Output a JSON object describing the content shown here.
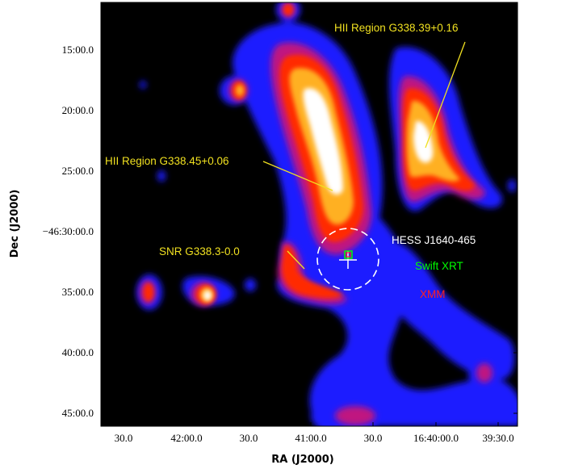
{
  "x_axis": {
    "title": "RA (J2000)",
    "ticks": [
      "30.0",
      "42:00.0",
      "30.0",
      "41:00.0",
      "30.0",
      "16:40:00.0",
      "39:30.0"
    ]
  },
  "y_axis": {
    "title": "Dec (J2000)",
    "ticks": [
      "15:00.0",
      "20:00.0",
      "25:00.0",
      "−46:30:00.0",
      "35:00.0",
      "40:00.0",
      "45:00.0"
    ]
  },
  "annotations": {
    "hii_1": "HII Region G338.39+0.16",
    "hii_2": "HII Region G338.45+0.06",
    "snr": "SNR G338.3-0.0"
  },
  "legend": {
    "hess": "HESS J1640-465",
    "swift": "Swift XRT",
    "xmm": "XMM"
  },
  "colors": {
    "annotation": "#f0e020",
    "hess": "#ffffff",
    "swift": "#00ff00",
    "xmm": "#ff2020",
    "background": "#000000"
  }
}
